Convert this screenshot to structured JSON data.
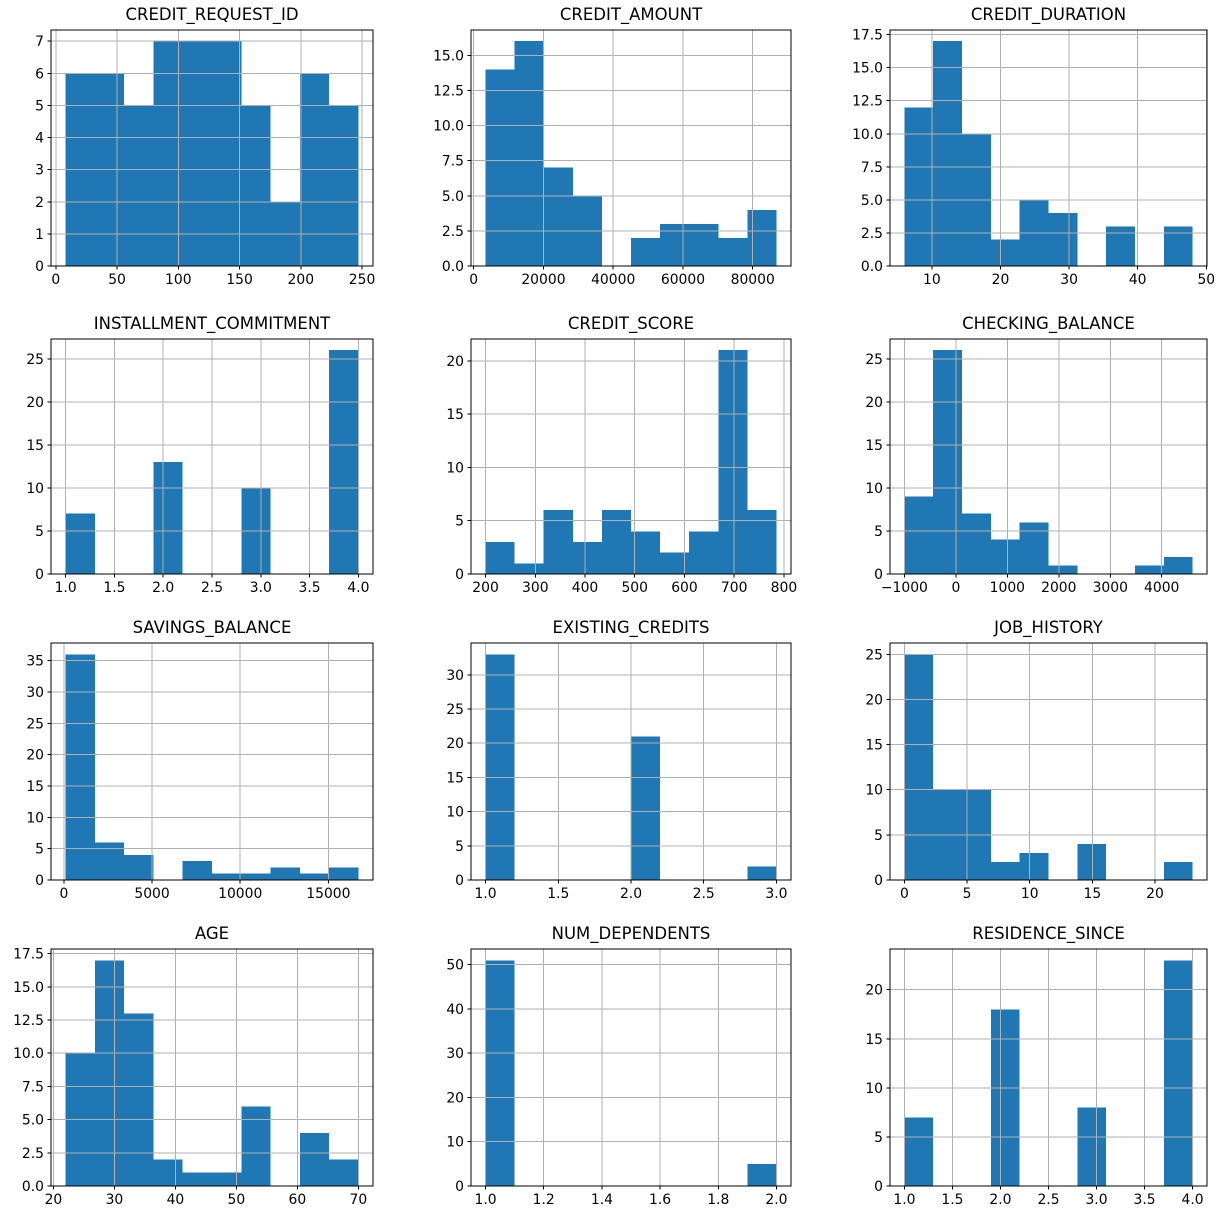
{
  "figure": {
    "kind": "histogram-grid",
    "rows": 4,
    "cols": 3,
    "background": "#ffffff",
    "bar_color": "#1f77b4",
    "grid_color": "#b0b0b0",
    "spine_color": "#000000",
    "text_color": "#000000"
  },
  "chart_data": [
    {
      "type": "bar",
      "subtype": "histogram",
      "title": "CREDIT_REQUEST_ID",
      "bin_start": 8,
      "bin_end": 247,
      "n_bins": 10,
      "counts": [
        6,
        6,
        5,
        7,
        7,
        7,
        5,
        2,
        6,
        5
      ],
      "xticks": [
        0,
        50,
        100,
        150,
        200,
        250
      ],
      "xtick_labels": [
        "0",
        "50",
        "100",
        "150",
        "200",
        "250"
      ],
      "yticks": [
        0,
        1,
        2,
        3,
        4,
        5,
        6,
        7
      ],
      "ytick_labels": [
        "0",
        "1",
        "2",
        "3",
        "4",
        "5",
        "6",
        "7"
      ],
      "grid": true
    },
    {
      "type": "bar",
      "subtype": "histogram",
      "title": "CREDIT_AMOUNT",
      "bin_start": 3400,
      "bin_end": 86800,
      "n_bins": 10,
      "counts": [
        14,
        16,
        7,
        5,
        0,
        2,
        3,
        3,
        2,
        4
      ],
      "xticks": [
        0,
        20000,
        40000,
        60000,
        80000
      ],
      "xtick_labels": [
        "0",
        "20000",
        "40000",
        "60000",
        "80000"
      ],
      "yticks": [
        0,
        2.5,
        5,
        7.5,
        10,
        12.5,
        15
      ],
      "ytick_labels": [
        "0.0",
        "2.5",
        "5.0",
        "7.5",
        "10.0",
        "12.5",
        "15.0"
      ],
      "grid": true
    },
    {
      "type": "bar",
      "subtype": "histogram",
      "title": "CREDIT_DURATION",
      "bin_start": 6,
      "bin_end": 48,
      "n_bins": 10,
      "counts": [
        12,
        17,
        10,
        2,
        5,
        4,
        0,
        3,
        0,
        3
      ],
      "xticks": [
        10,
        20,
        30,
        40,
        50
      ],
      "xtick_labels": [
        "10",
        "20",
        "30",
        "40",
        "50"
      ],
      "yticks": [
        0,
        2.5,
        5,
        7.5,
        10,
        12.5,
        15,
        17.5
      ],
      "ytick_labels": [
        "0.0",
        "2.5",
        "5.0",
        "7.5",
        "10.0",
        "12.5",
        "15.0",
        "17.5"
      ],
      "grid": true
    },
    {
      "type": "bar",
      "subtype": "histogram",
      "title": "INSTALLMENT_COMMITMENT",
      "bin_start": 1,
      "bin_end": 4,
      "n_bins": 10,
      "counts": [
        7,
        0,
        0,
        13,
        0,
        0,
        10,
        0,
        0,
        26
      ],
      "xticks": [
        1,
        1.5,
        2,
        2.5,
        3,
        3.5,
        4
      ],
      "xtick_labels": [
        "1.0",
        "1.5",
        "2.0",
        "2.5",
        "3.0",
        "3.5",
        "4.0"
      ],
      "yticks": [
        0,
        5,
        10,
        15,
        20,
        25
      ],
      "ytick_labels": [
        "0",
        "5",
        "10",
        "15",
        "20",
        "25"
      ],
      "grid": true
    },
    {
      "type": "bar",
      "subtype": "histogram",
      "title": "CREDIT_SCORE",
      "bin_start": 200,
      "bin_end": 785,
      "n_bins": 10,
      "counts": [
        3,
        1,
        6,
        3,
        6,
        4,
        2,
        4,
        21,
        6
      ],
      "xticks": [
        200,
        300,
        400,
        500,
        600,
        700,
        800
      ],
      "xtick_labels": [
        "200",
        "300",
        "400",
        "500",
        "600",
        "700",
        "800"
      ],
      "yticks": [
        0,
        5,
        10,
        15,
        20
      ],
      "ytick_labels": [
        "0",
        "5",
        "10",
        "15",
        "20"
      ],
      "grid": true
    },
    {
      "type": "bar",
      "subtype": "histogram",
      "title": "CHECKING_BALANCE",
      "bin_start": -1000,
      "bin_end": 4600,
      "n_bins": 10,
      "counts": [
        9,
        26,
        7,
        4,
        6,
        1,
        0,
        0,
        1,
        2
      ],
      "xticks": [
        -1000,
        0,
        1000,
        2000,
        3000,
        4000
      ],
      "xtick_labels": [
        "−1000",
        "0",
        "1000",
        "2000",
        "3000",
        "4000"
      ],
      "yticks": [
        0,
        5,
        10,
        15,
        20,
        25
      ],
      "ytick_labels": [
        "0",
        "5",
        "10",
        "15",
        "20",
        "25"
      ],
      "grid": true
    },
    {
      "type": "bar",
      "subtype": "histogram",
      "title": "SAVINGS_BALANCE",
      "bin_start": 100,
      "bin_end": 16700,
      "n_bins": 10,
      "counts": [
        36,
        6,
        4,
        0,
        3,
        1,
        1,
        2,
        1,
        2
      ],
      "xticks": [
        0,
        5000,
        10000,
        15000
      ],
      "xtick_labels": [
        "0",
        "5000",
        "10000",
        "15000"
      ],
      "yticks": [
        0,
        5,
        10,
        15,
        20,
        25,
        30,
        35
      ],
      "ytick_labels": [
        "0",
        "5",
        "10",
        "15",
        "20",
        "25",
        "30",
        "35"
      ],
      "grid": true
    },
    {
      "type": "bar",
      "subtype": "histogram",
      "title": "EXISTING_CREDITS",
      "bin_start": 1,
      "bin_end": 3,
      "n_bins": 10,
      "counts": [
        33,
        0,
        0,
        0,
        0,
        21,
        0,
        0,
        0,
        2
      ],
      "xticks": [
        1,
        1.5,
        2,
        2.5,
        3
      ],
      "xtick_labels": [
        "1.0",
        "1.5",
        "2.0",
        "2.5",
        "3.0"
      ],
      "yticks": [
        0,
        5,
        10,
        15,
        20,
        25,
        30
      ],
      "ytick_labels": [
        "0",
        "5",
        "10",
        "15",
        "20",
        "25",
        "30"
      ],
      "grid": true
    },
    {
      "type": "bar",
      "subtype": "histogram",
      "title": "JOB_HISTORY",
      "bin_start": 0,
      "bin_end": 23,
      "n_bins": 10,
      "counts": [
        25,
        10,
        10,
        2,
        3,
        0,
        4,
        0,
        0,
        2
      ],
      "xticks": [
        0,
        5,
        10,
        15,
        20
      ],
      "xtick_labels": [
        "0",
        "5",
        "10",
        "15",
        "20"
      ],
      "yticks": [
        0,
        5,
        10,
        15,
        20,
        25
      ],
      "ytick_labels": [
        "0",
        "5",
        "10",
        "15",
        "20",
        "25"
      ],
      "grid": true
    },
    {
      "type": "bar",
      "subtype": "histogram",
      "title": "AGE",
      "bin_start": 22,
      "bin_end": 70,
      "n_bins": 10,
      "counts": [
        10,
        17,
        13,
        2,
        1,
        1,
        6,
        0,
        4,
        2
      ],
      "xticks": [
        20,
        30,
        40,
        50,
        60,
        70
      ],
      "xtick_labels": [
        "20",
        "30",
        "40",
        "50",
        "60",
        "70"
      ],
      "yticks": [
        0,
        2.5,
        5,
        7.5,
        10,
        12.5,
        15,
        17.5
      ],
      "ytick_labels": [
        "0.0",
        "2.5",
        "5.0",
        "7.5",
        "10.0",
        "12.5",
        "15.0",
        "17.5"
      ],
      "grid": true
    },
    {
      "type": "bar",
      "subtype": "histogram",
      "title": "NUM_DEPENDENTS",
      "bin_start": 1,
      "bin_end": 2,
      "n_bins": 10,
      "counts": [
        51,
        0,
        0,
        0,
        0,
        0,
        0,
        0,
        0,
        5
      ],
      "xticks": [
        1,
        1.2,
        1.4,
        1.6,
        1.8,
        2
      ],
      "xtick_labels": [
        "1.0",
        "1.2",
        "1.4",
        "1.6",
        "1.8",
        "2.0"
      ],
      "yticks": [
        0,
        10,
        20,
        30,
        40,
        50
      ],
      "ytick_labels": [
        "0",
        "10",
        "20",
        "30",
        "40",
        "50"
      ],
      "grid": true
    },
    {
      "type": "bar",
      "subtype": "histogram",
      "title": "RESIDENCE_SINCE",
      "bin_start": 1,
      "bin_end": 4,
      "n_bins": 10,
      "counts": [
        7,
        0,
        0,
        18,
        0,
        0,
        8,
        0,
        0,
        23
      ],
      "xticks": [
        1,
        1.5,
        2,
        2.5,
        3,
        3.5,
        4
      ],
      "xtick_labels": [
        "1.0",
        "1.5",
        "2.0",
        "2.5",
        "3.0",
        "3.5",
        "4.0"
      ],
      "yticks": [
        0,
        5,
        10,
        15,
        20
      ],
      "ytick_labels": [
        "0",
        "5",
        "10",
        "15",
        "20"
      ],
      "grid": true
    }
  ]
}
